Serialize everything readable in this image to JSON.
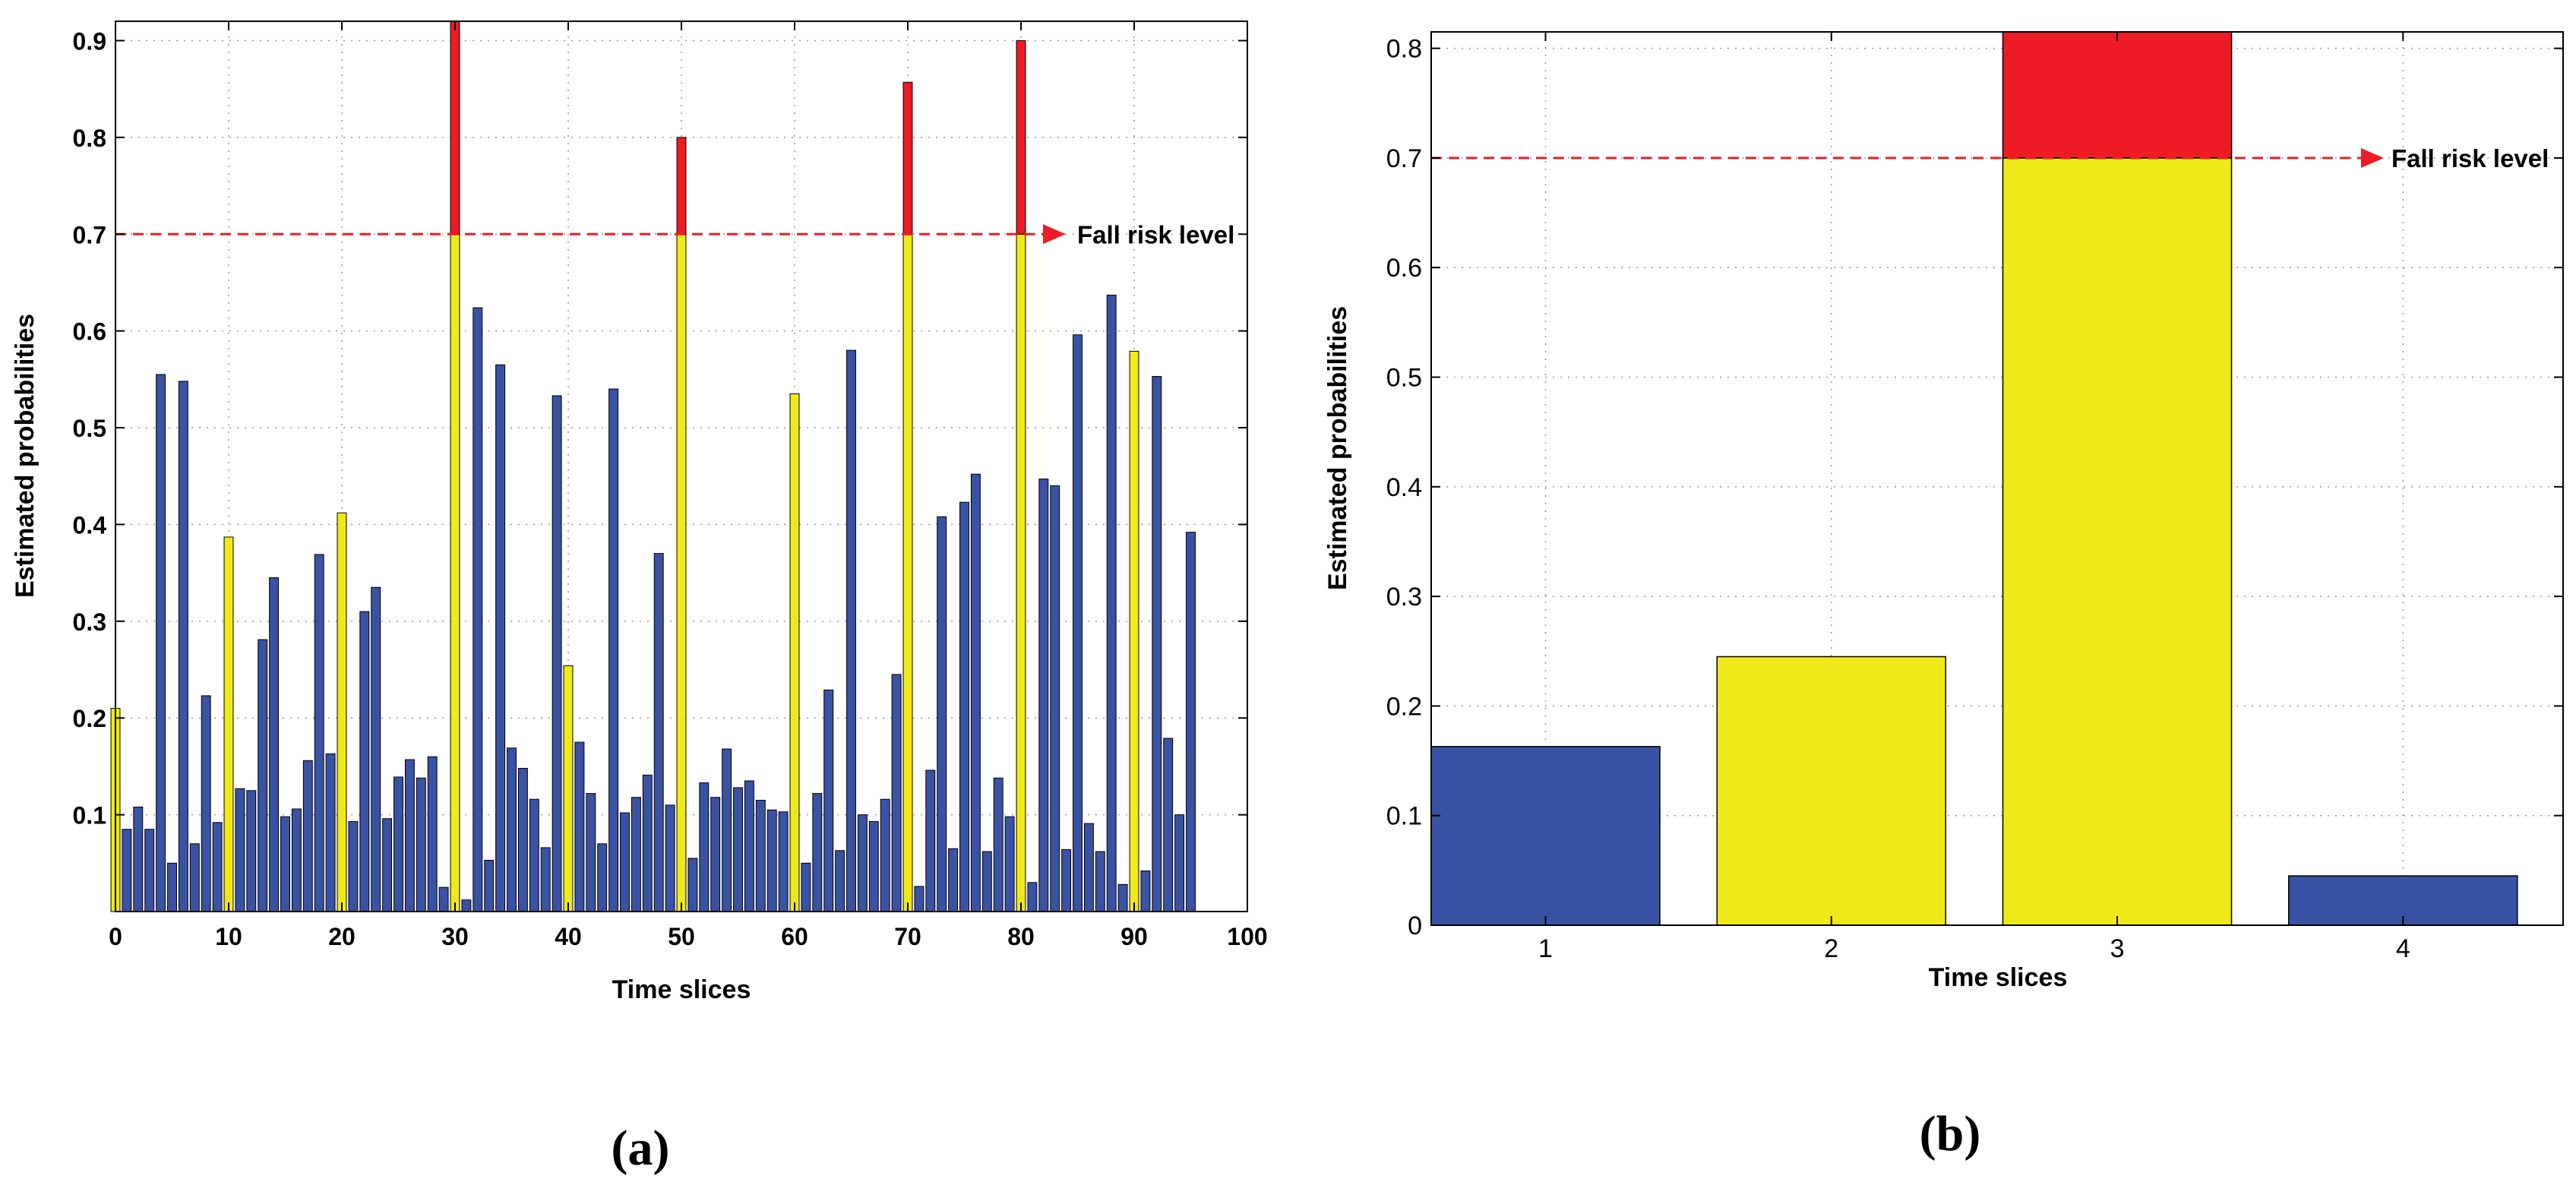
{
  "colors": {
    "low": "#3a52a3",
    "moderate": "#f0e919",
    "high": "#ed1c24",
    "reference": "#ed1c24"
  },
  "chart_data": [
    {
      "panel": "(a)",
      "type": "bar",
      "xlabel": "Time slices",
      "ylabel": "Estimated probabilities",
      "xlim": [
        0,
        100
      ],
      "ylim": [
        0,
        0.92
      ],
      "xticks": [
        "0",
        "10",
        "20",
        "30",
        "40",
        "50",
        "60",
        "70",
        "80",
        "90",
        "100"
      ],
      "yticks": [
        "0.1",
        "0.2",
        "0.3",
        "0.4",
        "0.5",
        "0.6",
        "0.7",
        "0.8",
        "0.9"
      ],
      "grid": true,
      "reference_line": {
        "value": 0.7,
        "label": "Fall risk level"
      },
      "x": [
        0,
        1,
        2,
        3,
        4,
        5,
        6,
        7,
        8,
        9,
        10,
        11,
        12,
        13,
        14,
        15,
        16,
        17,
        18,
        19,
        20,
        21,
        22,
        23,
        24,
        25,
        26,
        27,
        28,
        29,
        30,
        31,
        32,
        33,
        34,
        35,
        36,
        37,
        38,
        39,
        40,
        41,
        42,
        43,
        44,
        45,
        46,
        47,
        48,
        49,
        50,
        51,
        52,
        53,
        54,
        55,
        56,
        57,
        58,
        59,
        60,
        61,
        62,
        63,
        64,
        65,
        66,
        67,
        68,
        69,
        70,
        71,
        72,
        73,
        74,
        75,
        76,
        77,
        78,
        79,
        80,
        81,
        82,
        83,
        84,
        85,
        86,
        87,
        88,
        89,
        90,
        91,
        92,
        93,
        94,
        95
      ],
      "values": [
        0.21,
        0.085,
        0.108,
        0.085,
        0.555,
        0.05,
        0.548,
        0.07,
        0.223,
        0.092,
        0.387,
        0.127,
        0.125,
        0.281,
        0.345,
        0.098,
        0.106,
        0.156,
        0.369,
        0.163,
        0.412,
        0.093,
        0.31,
        0.335,
        0.096,
        0.139,
        0.157,
        0.138,
        0.16,
        0.025,
        0.93,
        0.012,
        0.624,
        0.053,
        0.565,
        0.169,
        0.148,
        0.116,
        0.066,
        0.533,
        0.254,
        0.175,
        0.122,
        0.07,
        0.54,
        0.102,
        0.118,
        0.141,
        0.37,
        0.11,
        0.8,
        0.055,
        0.133,
        0.118,
        0.168,
        0.128,
        0.135,
        0.115,
        0.105,
        0.103,
        0.535,
        0.05,
        0.122,
        0.229,
        0.063,
        0.58,
        0.1,
        0.093,
        0.116,
        0.245,
        0.857,
        0.026,
        0.146,
        0.408,
        0.065,
        0.423,
        0.452,
        0.062,
        0.138,
        0.098,
        0.9,
        0.03,
        0.447,
        0.44,
        0.064,
        0.596,
        0.091,
        0.062,
        0.637,
        0.028,
        0.579,
        0.042,
        0.553,
        0.179,
        0.1,
        0.392
      ],
      "highlight_every": 10
    },
    {
      "panel": "(b)",
      "type": "bar",
      "xlabel": "Time slices",
      "ylabel": "Estimated probabilities",
      "categories": [
        "1",
        "2",
        "3",
        "4"
      ],
      "values": [
        0.163,
        0.245,
        0.815,
        0.045
      ],
      "bar_colors": [
        "low",
        "moderate",
        "moderate",
        "low"
      ],
      "ylim": [
        0,
        0.815
      ],
      "yticks": [
        "0",
        "0.1",
        "0.2",
        "0.3",
        "0.4",
        "0.5",
        "0.6",
        "0.7",
        "0.8"
      ],
      "grid": true,
      "reference_line": {
        "value": 0.7,
        "label": "Fall risk level"
      }
    }
  ]
}
